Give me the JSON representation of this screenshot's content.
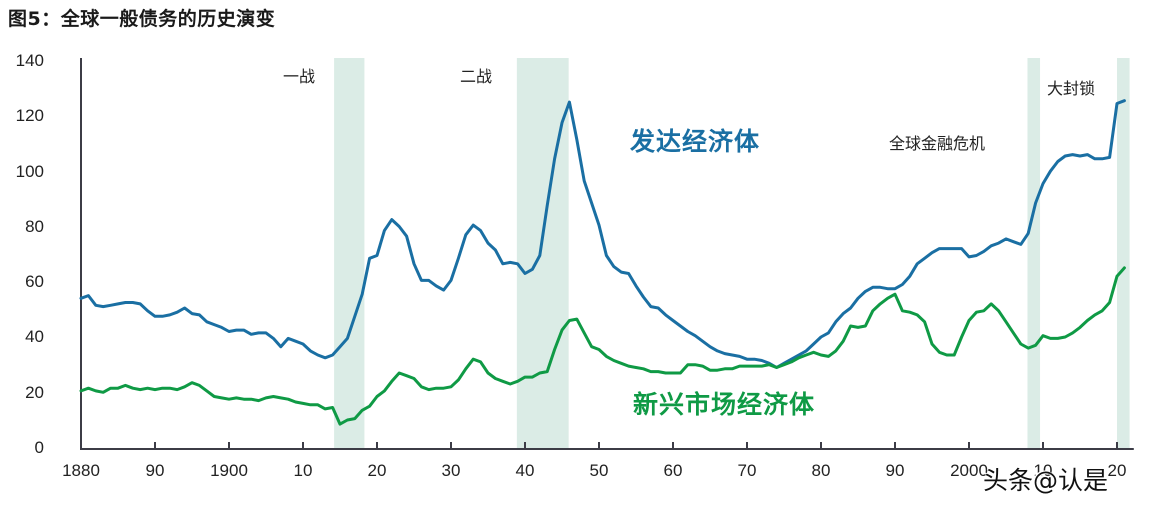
{
  "title": "图5：全球一般债务的历史演变",
  "watermark": "头条@认是",
  "colors": {
    "advanced": "#1a6fa3",
    "emerging": "#0f9a45",
    "shade": "#dbece6",
    "axis": "#3c3c46"
  },
  "annotations": {
    "ww1": "一战",
    "ww2": "二战",
    "gfc": "全球金融危机",
    "lockdown": "大封锁"
  },
  "series_labels": {
    "advanced": "发达经济体",
    "emerging": "新兴市场经济体"
  },
  "chart_data": {
    "type": "line",
    "title": "图5：全球一般债务的历史演变",
    "xlabel": "",
    "ylabel": "",
    "ylim": [
      0,
      140
    ],
    "xlim": [
      1880,
      2022
    ],
    "grid": false,
    "legend": "inline labels",
    "y_ticks": [
      0,
      20,
      40,
      60,
      80,
      100,
      120,
      140
    ],
    "x_ticks": [
      {
        "year": 1880,
        "label": "1880"
      },
      {
        "year": 1890,
        "label": "90"
      },
      {
        "year": 1900,
        "label": "1900"
      },
      {
        "year": 1910,
        "label": "10"
      },
      {
        "year": 1920,
        "label": "20"
      },
      {
        "year": 1930,
        "label": "30"
      },
      {
        "year": 1940,
        "label": "40"
      },
      {
        "year": 1950,
        "label": "50"
      },
      {
        "year": 1960,
        "label": "60"
      },
      {
        "year": 1970,
        "label": "70"
      },
      {
        "year": 1980,
        "label": "80"
      },
      {
        "year": 1990,
        "label": "90"
      },
      {
        "year": 2000,
        "label": "2000"
      },
      {
        "year": 2010,
        "label": "10"
      },
      {
        "year": 2020,
        "label": "20"
      }
    ],
    "shaded_periods": [
      {
        "name": "一战",
        "start": 1914.2,
        "end": 1918.3
      },
      {
        "name": "二战",
        "start": 1938.9,
        "end": 1945.9
      },
      {
        "name": "全球金融危机",
        "start": 2007.9,
        "end": 2009.6
      },
      {
        "name": "大封锁",
        "start": 2020.0,
        "end": 2021.7
      }
    ],
    "x": [
      1880,
      1881,
      1882,
      1883,
      1884,
      1885,
      1886,
      1887,
      1888,
      1889,
      1890,
      1891,
      1892,
      1893,
      1894,
      1895,
      1896,
      1897,
      1898,
      1899,
      1900,
      1901,
      1902,
      1903,
      1904,
      1905,
      1906,
      1907,
      1908,
      1909,
      1910,
      1911,
      1912,
      1913,
      1914,
      1915,
      1916,
      1917,
      1918,
      1919,
      1920,
      1921,
      1922,
      1923,
      1924,
      1925,
      1926,
      1927,
      1928,
      1929,
      1930,
      1931,
      1932,
      1933,
      1934,
      1935,
      1936,
      1937,
      1938,
      1939,
      1940,
      1941,
      1942,
      1943,
      1944,
      1945,
      1946,
      1947,
      1948,
      1949,
      1950,
      1951,
      1952,
      1953,
      1954,
      1955,
      1956,
      1957,
      1958,
      1959,
      1960,
      1961,
      1962,
      1963,
      1964,
      1965,
      1966,
      1967,
      1968,
      1969,
      1970,
      1971,
      1972,
      1973,
      1974,
      1975,
      1976,
      1977,
      1978,
      1979,
      1980,
      1981,
      1982,
      1983,
      1984,
      1985,
      1986,
      1987,
      1988,
      1989,
      1990,
      1991,
      1992,
      1993,
      1994,
      1995,
      1996,
      1997,
      1998,
      1999,
      2000,
      2001,
      2002,
      2003,
      2004,
      2005,
      2006,
      2007,
      2008,
      2009,
      2010,
      2011,
      2012,
      2013,
      2014,
      2015,
      2016,
      2017,
      2018,
      2019,
      2020,
      2021
    ],
    "series": [
      {
        "name": "发达经济体",
        "values": [
          54.5,
          55.5,
          52,
          51.5,
          52,
          52.5,
          53,
          53,
          52.5,
          50,
          48,
          48,
          48.5,
          49.5,
          51,
          49,
          48.5,
          46,
          45,
          44,
          42.5,
          43,
          43,
          41.5,
          42,
          42,
          40,
          37,
          40,
          39,
          38,
          35.5,
          34,
          33,
          34,
          37,
          40,
          48,
          56,
          69,
          70,
          79,
          83,
          80.5,
          77,
          67,
          61,
          61,
          59,
          57.5,
          61,
          69,
          77.5,
          81,
          79,
          74.5,
          72,
          67,
          67.5,
          67,
          63.5,
          65,
          70,
          88,
          105,
          118,
          125.5,
          112,
          97,
          89,
          81,
          70,
          66,
          64,
          63.5,
          59,
          55,
          51.5,
          51,
          48.5,
          46.5,
          44.5,
          42.5,
          41,
          39,
          37,
          35.5,
          34.5,
          34,
          33.5,
          32.5,
          32.5,
          32,
          31,
          29.5,
          31,
          32.5,
          34,
          35.5,
          38,
          40.5,
          42,
          46,
          49,
          51,
          54.5,
          57,
          58.5,
          58.5,
          58,
          58,
          59.5,
          62.5,
          67,
          69,
          71,
          72.5,
          72.5,
          72.5,
          72.5,
          69.5,
          70,
          71.5,
          73.5,
          74.5,
          76,
          75,
          74,
          78,
          89,
          96,
          100.5,
          104,
          106,
          106.5,
          106,
          106.5,
          105,
          105,
          105.5,
          125,
          126
        ]
      },
      {
        "name": "新兴市场经济体",
        "values": [
          21,
          22,
          21,
          20.5,
          22,
          22,
          23,
          22,
          21.5,
          22,
          21.5,
          22,
          22,
          21.5,
          22.5,
          24,
          23,
          21,
          19,
          18.5,
          18,
          18.5,
          18,
          18,
          17.5,
          18.5,
          19,
          18.5,
          18,
          17,
          16.5,
          16,
          16,
          14.5,
          15,
          9,
          10.5,
          11,
          14,
          15.5,
          19,
          21,
          24.5,
          27.5,
          26.5,
          25.5,
          22.5,
          21.5,
          22,
          22,
          22.5,
          25,
          29,
          32.5,
          31.5,
          27.5,
          25.5,
          24.5,
          23.5,
          24.5,
          26,
          26,
          27.5,
          28,
          36,
          43,
          46.5,
          47,
          42,
          37,
          36,
          33.5,
          32,
          31,
          30,
          29.5,
          29,
          28,
          28,
          27.5,
          27.5,
          27.5,
          30.5,
          30.5,
          30,
          28.5,
          28.5,
          29,
          29,
          30,
          30,
          30,
          30,
          30.5,
          29.5,
          30.5,
          31.5,
          33,
          34,
          35,
          34,
          33.5,
          35.5,
          39,
          44.5,
          44,
          44.5,
          50,
          52.5,
          54.5,
          56,
          50,
          49.5,
          48.5,
          46,
          38,
          35,
          34,
          34,
          40.5,
          46.5,
          49.5,
          50,
          52.5,
          50,
          46,
          42,
          38,
          36.5,
          37.5,
          41,
          40,
          40,
          40.5,
          42,
          44,
          46.5,
          48.5,
          50,
          53,
          62.5,
          65.5
        ]
      }
    ]
  }
}
